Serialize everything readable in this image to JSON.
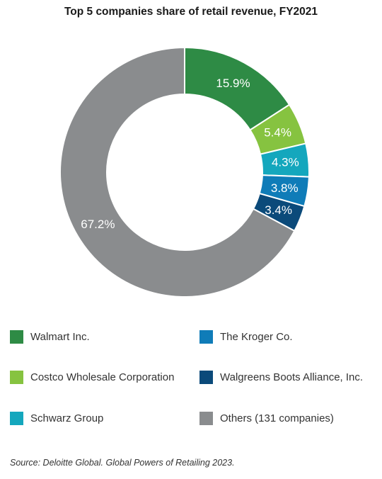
{
  "chart_data": {
    "type": "pie",
    "title": "Top 5 companies share of retail revenue, FY2021",
    "variant": "donut",
    "legend_position": "bottom",
    "slices": [
      {
        "name": "Walmart Inc.",
        "value": 15.9,
        "label": "15.9%",
        "color": "#2e8b45"
      },
      {
        "name": "Costco Wholesale Corporation",
        "value": 5.4,
        "label": "5.4%",
        "color": "#86c340"
      },
      {
        "name": "Schwarz Group",
        "value": 4.3,
        "label": "4.3%",
        "color": "#14a7bd"
      },
      {
        "name": "The Kroger Co.",
        "value": 3.8,
        "label": "3.8%",
        "color": "#0f7cb8"
      },
      {
        "name": "Walgreens Boots Alliance, Inc.",
        "value": 3.4,
        "label": "3.4%",
        "color": "#0b4a7a"
      },
      {
        "name": "Others (131 companies)",
        "value": 67.2,
        "label": "67.2%",
        "color": "#8a8c8e"
      }
    ]
  },
  "source": "Source: Deloitte Global. Global Powers of Retailing 2023."
}
